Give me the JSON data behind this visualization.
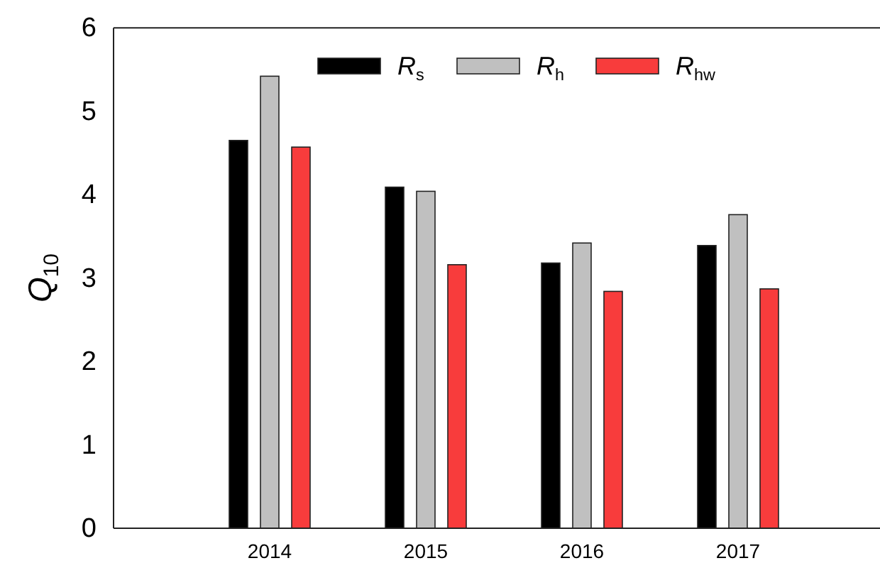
{
  "chart_data": {
    "type": "bar",
    "ylabel": "Q$_{10}$",
    "categories": [
      "2014",
      "2015",
      "2016",
      "2017"
    ],
    "series": [
      {
        "name": "R$_{s}$",
        "color": "#000000",
        "values": [
          4.65,
          4.09,
          3.18,
          3.39
        ]
      },
      {
        "name": "R$_{h}$",
        "color": "#c0c0c0",
        "values": [
          5.42,
          4.04,
          3.42,
          3.76
        ]
      },
      {
        "name": "R$_{hw}$",
        "color": "#f83c3c",
        "values": [
          4.57,
          3.16,
          2.84,
          2.87
        ]
      }
    ],
    "ylim": [
      0,
      6
    ],
    "yticks": [
      0,
      1,
      2,
      3,
      4,
      5,
      6
    ],
    "legend": "top",
    "grid": false
  }
}
